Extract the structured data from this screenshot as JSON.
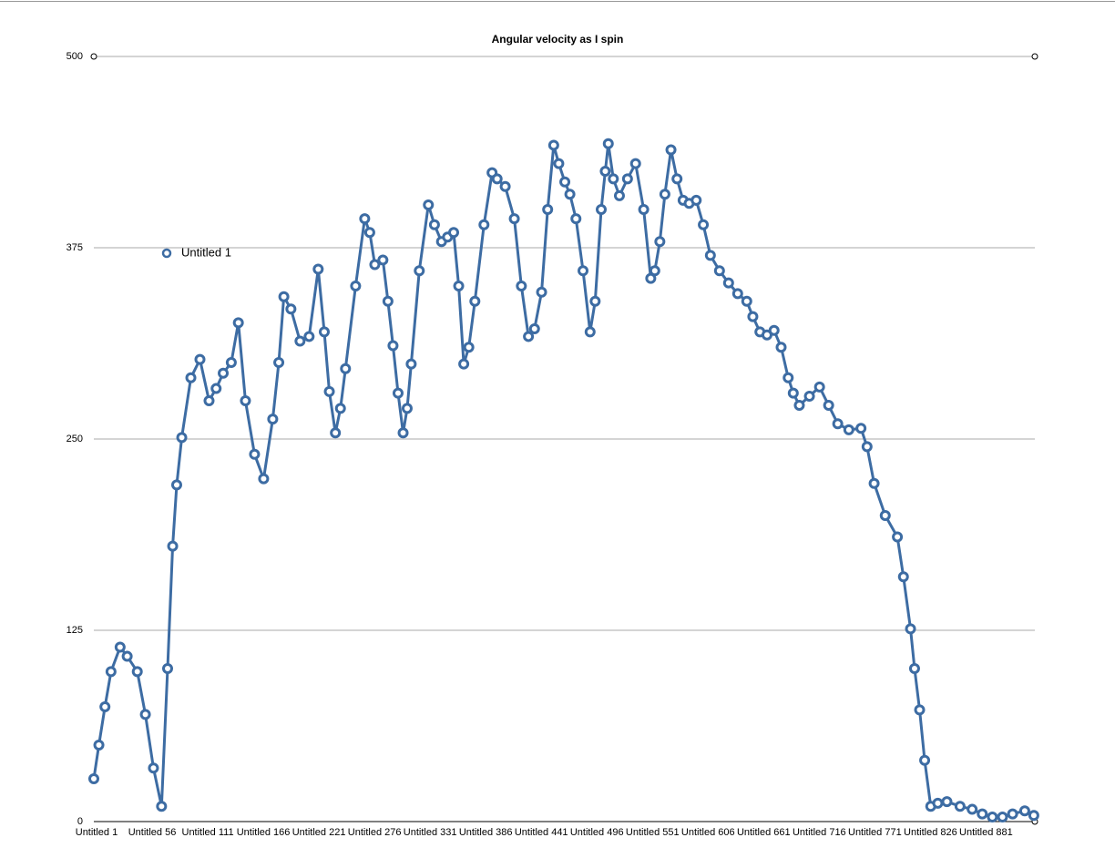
{
  "chart_data": {
    "type": "line",
    "title": "Angular velocity as I spin",
    "xlim": [
      1,
      932
    ],
    "ylim": [
      0,
      500
    ],
    "yticks": [
      0,
      125,
      250,
      375,
      500
    ],
    "xticks": [
      {
        "value": 1,
        "label": "Untitled 1"
      },
      {
        "value": 56,
        "label": "Untitled 56"
      },
      {
        "value": 111,
        "label": "Untitled 111"
      },
      {
        "value": 166,
        "label": "Untitled 166"
      },
      {
        "value": 221,
        "label": "Untitled 221"
      },
      {
        "value": 276,
        "label": "Untitled 276"
      },
      {
        "value": 331,
        "label": "Untitled 331"
      },
      {
        "value": 386,
        "label": "Untitled 386"
      },
      {
        "value": 441,
        "label": "Untitled 441"
      },
      {
        "value": 496,
        "label": "Untitled 496"
      },
      {
        "value": 551,
        "label": "Untitled 551"
      },
      {
        "value": 606,
        "label": "Untitled 606"
      },
      {
        "value": 661,
        "label": "Untitled 661"
      },
      {
        "value": 716,
        "label": "Untitled 716"
      },
      {
        "value": 771,
        "label": "Untitled 771"
      },
      {
        "value": 826,
        "label": "Untitled 826"
      },
      {
        "value": 881,
        "label": "Untitled 881"
      }
    ],
    "grid": true,
    "legend": "upper-left",
    "x": [
      1,
      6,
      12,
      18,
      27,
      34,
      44,
      52,
      60,
      68,
      74,
      79,
      83,
      88,
      97,
      106,
      115,
      122,
      129,
      137,
      144,
      151,
      160,
      169,
      178,
      184,
      189,
      196,
      205,
      214,
      223,
      229,
      234,
      240,
      245,
      250,
      260,
      269,
      274,
      279,
      287,
      292,
      297,
      302,
      307,
      311,
      315,
      323,
      332,
      338,
      345,
      351,
      357,
      362,
      367,
      372,
      378,
      387,
      395,
      400,
      408,
      417,
      424,
      431,
      437,
      444,
      450,
      456,
      461,
      467,
      472,
      478,
      485,
      492,
      497,
      503,
      507,
      510,
      515,
      521,
      529,
      537,
      545,
      552,
      556,
      561,
      566,
      572,
      578,
      584,
      590,
      597,
      604,
      611,
      620,
      629,
      638,
      647,
      653,
      660,
      667,
      674,
      681,
      688,
      693,
      699,
      709,
      719,
      728,
      737,
      748,
      760,
      766,
      773,
      784,
      796,
      802,
      809,
      813,
      818,
      823,
      829,
      836,
      845,
      858,
      870,
      880,
      890,
      900,
      910,
      922,
      931
    ],
    "series": [
      {
        "name": "Untitled 1",
        "color": "#3d6ca3",
        "values": [
          28,
          50,
          75,
          98,
          114,
          108,
          98,
          70,
          35,
          10,
          100,
          180,
          220,
          251,
          290,
          302,
          275,
          283,
          293,
          300,
          326,
          275,
          240,
          224,
          263,
          300,
          343,
          335,
          314,
          317,
          361,
          320,
          281,
          254,
          270,
          296,
          350,
          394,
          385,
          364,
          367,
          340,
          311,
          280,
          254,
          270,
          299,
          360,
          403,
          390,
          379,
          382,
          385,
          350,
          299,
          310,
          340,
          390,
          424,
          420,
          415,
          394,
          350,
          317,
          322,
          346,
          400,
          442,
          430,
          418,
          410,
          394,
          360,
          320,
          340,
          400,
          425,
          443,
          420,
          409,
          420,
          430,
          400,
          355,
          360,
          379,
          410,
          439,
          420,
          406,
          404,
          406,
          390,
          370,
          360,
          352,
          345,
          340,
          330,
          320,
          318,
          321,
          310,
          290,
          280,
          272,
          278,
          284,
          272,
          260,
          256,
          257,
          245,
          221,
          200,
          186,
          160,
          126,
          100,
          73,
          40,
          10,
          12,
          13,
          10,
          8,
          5,
          3,
          3,
          5,
          7,
          4
        ]
      }
    ]
  }
}
